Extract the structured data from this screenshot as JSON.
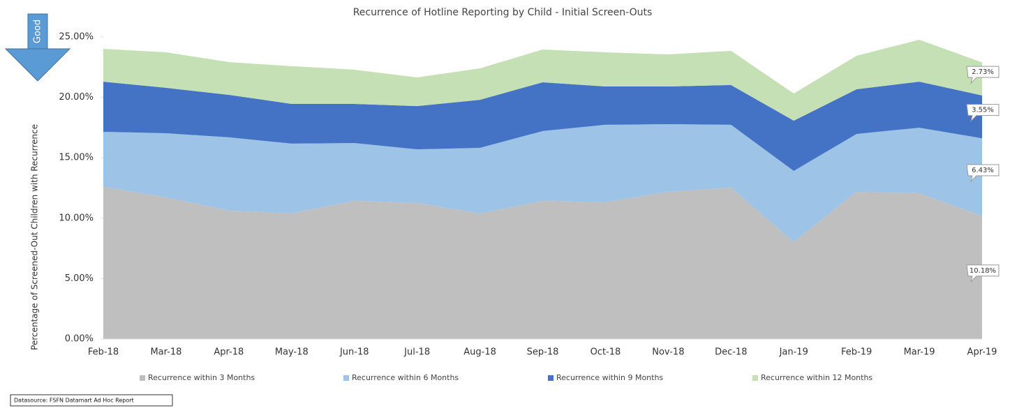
{
  "chart_data": {
    "type": "stacked_area",
    "title": "Recurrence of Hotline Reporting by Child - Initial Screen-Outs",
    "y_label": "Percentage of Screened-Out Children with Recurrence",
    "annotation": "Good",
    "source": "Datasource: FSFN Datamart Ad Hoc Report",
    "categories": [
      "Feb-18",
      "Mar-18",
      "Apr-18",
      "May-18",
      "Jun-18",
      "Jul-18",
      "Aug-18",
      "Sep-18",
      "Oct-18",
      "Nov-18",
      "Dec-18",
      "Jan-19",
      "Feb-19",
      "Mar-19",
      "Apr-19"
    ],
    "series": [
      {
        "name": "Recurrence within 3 Months",
        "color": "#bfbfbf",
        "values": [
          12.59,
          11.72,
          10.62,
          10.39,
          11.43,
          11.26,
          10.39,
          11.43,
          11.32,
          12.18,
          12.53,
          8.03,
          12.18,
          12.07,
          10.18
        ],
        "value_labels": [
          null,
          null,
          null,
          null,
          null,
          null,
          null,
          null,
          null,
          null,
          null,
          null,
          null,
          null,
          "10.18%"
        ]
      },
      {
        "name": "Recurrence within 6 Months",
        "color": "#9dc3e6",
        "values": [
          4.56,
          5.31,
          6.07,
          5.78,
          4.79,
          4.44,
          5.43,
          5.78,
          6.41,
          5.6,
          5.2,
          5.88,
          4.79,
          5.42,
          6.43
        ],
        "value_labels": [
          null,
          null,
          null,
          null,
          null,
          null,
          null,
          null,
          null,
          null,
          null,
          null,
          null,
          null,
          "6.43%"
        ]
      },
      {
        "name": "Recurrence within 9 Months",
        "color": "#4472c4",
        "values": [
          4.15,
          3.76,
          3.52,
          3.29,
          3.24,
          3.58,
          3.98,
          4.04,
          3.17,
          3.12,
          3.29,
          4.16,
          3.7,
          3.81,
          3.55
        ],
        "value_labels": [
          null,
          null,
          null,
          null,
          null,
          null,
          null,
          null,
          null,
          null,
          null,
          null,
          null,
          null,
          "3.55%"
        ]
      },
      {
        "name": "Recurrence within 12 Months",
        "color": "#c5e0b4",
        "values": [
          2.72,
          2.94,
          2.71,
          3.12,
          2.83,
          2.37,
          2.6,
          2.71,
          2.83,
          2.66,
          2.83,
          2.25,
          2.77,
          3.47,
          2.73
        ],
        "value_labels": [
          null,
          null,
          null,
          null,
          null,
          null,
          null,
          null,
          null,
          null,
          null,
          null,
          null,
          null,
          "2.73%"
        ]
      }
    ],
    "ylim": [
      0,
      25
    ],
    "yticks": [
      {
        "value": 0,
        "label": "0.00%"
      },
      {
        "value": 5,
        "label": "5.00%"
      },
      {
        "value": 10,
        "label": "10.00%"
      },
      {
        "value": 15,
        "label": "15.00%"
      },
      {
        "value": 20,
        "label": "20.00%"
      },
      {
        "value": 25,
        "label": "25.00%"
      }
    ],
    "legend": "bottom"
  }
}
